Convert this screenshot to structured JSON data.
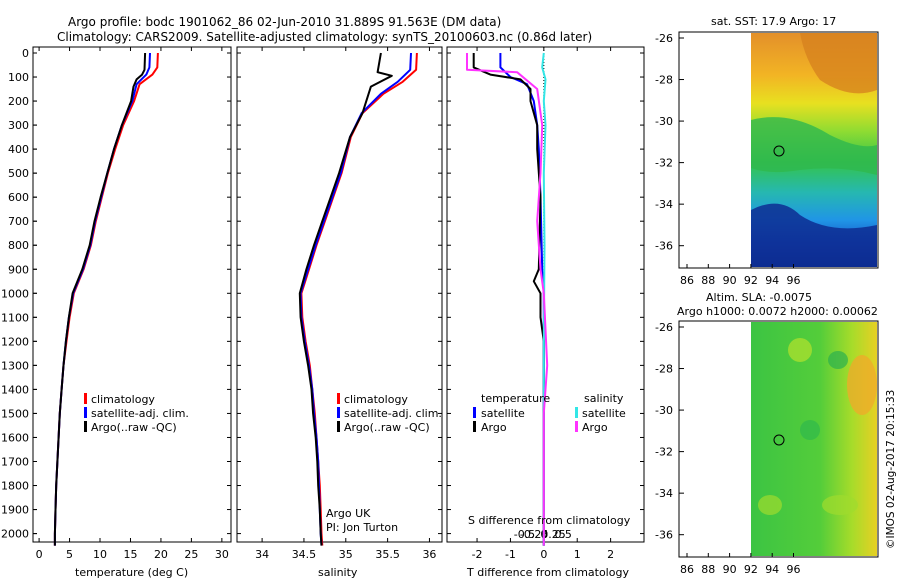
{
  "header": {
    "line1": "Argo profile: bodc 1901062_86 02-Jun-2010 31.889S 91.563E (DM data)",
    "line2": "Climatology: CARS2009. Satellite-adjusted climatology: synTS_20100603.nc (0.86d later)"
  },
  "colors": {
    "climatology": "#ff0000",
    "satellite": "#0000ff",
    "argo": "#000000",
    "sal_satellite": "#33e6e6",
    "sal_argo": "#ff33ff"
  },
  "depth_axis": {
    "ticks": [
      "0",
      "100",
      "200",
      "300",
      "400",
      "500",
      "600",
      "700",
      "800",
      "900",
      "1000",
      "1100",
      "1200",
      "1300",
      "1400",
      "1500",
      "1600",
      "1700",
      "1800",
      "1900",
      "2000"
    ]
  },
  "legend": {
    "climatology": "climatology",
    "satellite_adj": "satellite-adj. clim.",
    "argo": "Argo(..raw -QC)"
  },
  "credit": {
    "line1": "Argo UK",
    "line2": "PI: Jon Turton"
  },
  "diff_legend": {
    "temperature": "temperature",
    "salinity": "salinity",
    "satellite": "satellite",
    "argo": "Argo"
  },
  "maps": {
    "top_title": "sat. SST: 17.9 Argo: 17",
    "bottom_title1": "Altim. SLA: -0.0075",
    "bottom_title2": "Argo h1000: 0.0072 h2000: 0.00062",
    "lat_ticks": [
      "-26",
      "-28",
      "-30",
      "-32",
      "-34",
      "-36"
    ],
    "lon_ticks": [
      "86",
      "88",
      "90",
      "92",
      "94",
      "96"
    ],
    "footer": "©IMOS 02-Aug-2017 20:15:33"
  },
  "chart_data": [
    {
      "type": "line",
      "name": "temperature",
      "xlabel": "temperature (deg C)",
      "xlim": [
        -1,
        31.5
      ],
      "ylim": [
        2060,
        0
      ],
      "xticks": [
        "0",
        "5",
        "10",
        "15",
        "20",
        "25",
        "30"
      ],
      "series": [
        {
          "name": "climatology",
          "color": "#ff0000",
          "points": [
            [
              19.5,
              0
            ],
            [
              19.4,
              60
            ],
            [
              18.6,
              90
            ],
            [
              16.5,
              130
            ],
            [
              15.6,
              200
            ],
            [
              13.8,
              300
            ],
            [
              12.5,
              400
            ],
            [
              11.3,
              500
            ],
            [
              10.3,
              600
            ],
            [
              9.3,
              700
            ],
            [
              8.5,
              800
            ],
            [
              7.3,
              900
            ],
            [
              5.7,
              1000
            ],
            [
              5.0,
              1100
            ],
            [
              4.5,
              1200
            ],
            [
              4.0,
              1300
            ],
            [
              3.7,
              1400
            ],
            [
              3.4,
              1500
            ],
            [
              3.2,
              1600
            ],
            [
              3.0,
              1700
            ],
            [
              2.8,
              1800
            ],
            [
              2.7,
              1900
            ],
            [
              2.6,
              2000
            ],
            [
              2.6,
              2050
            ]
          ]
        },
        {
          "name": "satellite-adj. clim.",
          "color": "#0000ff",
          "points": [
            [
              18.2,
              0
            ],
            [
              18.1,
              60
            ],
            [
              17.6,
              90
            ],
            [
              16.0,
              130
            ],
            [
              15.3,
              200
            ],
            [
              13.6,
              300
            ],
            [
              12.3,
              400
            ],
            [
              11.2,
              500
            ],
            [
              10.2,
              600
            ],
            [
              9.2,
              700
            ],
            [
              8.4,
              800
            ],
            [
              7.2,
              900
            ],
            [
              5.6,
              1000
            ],
            [
              4.9,
              1100
            ],
            [
              4.4,
              1200
            ],
            [
              4.0,
              1300
            ],
            [
              3.7,
              1400
            ],
            [
              3.4,
              1500
            ],
            [
              3.2,
              1600
            ],
            [
              3.0,
              1700
            ],
            [
              2.8,
              1800
            ],
            [
              2.7,
              1900
            ],
            [
              2.6,
              2000
            ],
            [
              2.6,
              2050
            ]
          ]
        },
        {
          "name": "Argo(..raw -QC)",
          "color": "#000000",
          "points": [
            [
              17.4,
              0
            ],
            [
              17.3,
              70
            ],
            [
              16.9,
              90
            ],
            [
              16.0,
              110
            ],
            [
              15.5,
              140
            ],
            [
              15.1,
              200
            ],
            [
              13.6,
              300
            ],
            [
              12.3,
              400
            ],
            [
              11.2,
              500
            ],
            [
              10.1,
              600
            ],
            [
              9.1,
              700
            ],
            [
              8.3,
              800
            ],
            [
              7.1,
              900
            ],
            [
              5.5,
              1000
            ],
            [
              4.9,
              1100
            ],
            [
              4.4,
              1200
            ],
            [
              4.0,
              1300
            ],
            [
              3.7,
              1400
            ],
            [
              3.4,
              1500
            ],
            [
              3.2,
              1600
            ],
            [
              3.0,
              1700
            ],
            [
              2.8,
              1800
            ],
            [
              2.7,
              1900
            ],
            [
              2.6,
              2000
            ],
            [
              2.6,
              2050
            ]
          ]
        }
      ]
    },
    {
      "type": "line",
      "name": "salinity",
      "xlabel": "salinity",
      "xlim": [
        33.7,
        36.15
      ],
      "ylim": [
        2060,
        0
      ],
      "xticks": [
        "34",
        "34.5",
        "35",
        "35.5",
        "36"
      ],
      "series": [
        {
          "name": "climatology",
          "color": "#ff0000",
          "points": [
            [
              35.85,
              0
            ],
            [
              35.84,
              70
            ],
            [
              35.68,
              120
            ],
            [
              35.45,
              170
            ],
            [
              35.2,
              250
            ],
            [
              35.06,
              350
            ],
            [
              34.95,
              500
            ],
            [
              34.85,
              600
            ],
            [
              34.75,
              700
            ],
            [
              34.65,
              800
            ],
            [
              34.56,
              900
            ],
            [
              34.47,
              1000
            ],
            [
              34.48,
              1100
            ],
            [
              34.52,
              1200
            ],
            [
              34.57,
              1300
            ],
            [
              34.6,
              1400
            ],
            [
              34.63,
              1500
            ],
            [
              34.65,
              1600
            ],
            [
              34.67,
              1700
            ],
            [
              34.69,
              1800
            ],
            [
              34.7,
              1900
            ],
            [
              34.71,
              2000
            ],
            [
              34.72,
              2050
            ]
          ]
        },
        {
          "name": "satellite-adj. clim.",
          "color": "#0000ff",
          "points": [
            [
              35.78,
              0
            ],
            [
              35.77,
              70
            ],
            [
              35.62,
              120
            ],
            [
              35.42,
              170
            ],
            [
              35.19,
              250
            ],
            [
              35.05,
              350
            ],
            [
              34.94,
              500
            ],
            [
              34.84,
              600
            ],
            [
              34.74,
              700
            ],
            [
              34.64,
              800
            ],
            [
              34.55,
              900
            ],
            [
              34.46,
              1000
            ],
            [
              34.47,
              1100
            ],
            [
              34.51,
              1200
            ],
            [
              34.56,
              1300
            ],
            [
              34.6,
              1400
            ],
            [
              34.62,
              1500
            ],
            [
              34.65,
              1600
            ],
            [
              34.67,
              1700
            ],
            [
              34.68,
              1800
            ],
            [
              34.69,
              1900
            ],
            [
              34.7,
              2000
            ],
            [
              34.71,
              2050
            ]
          ]
        },
        {
          "name": "Argo(..raw -QC)",
          "color": "#000000",
          "points": [
            [
              35.42,
              0
            ],
            [
              35.38,
              80
            ],
            [
              35.55,
              95
            ],
            [
              35.3,
              140
            ],
            [
              35.2,
              250
            ],
            [
              35.05,
              350
            ],
            [
              34.92,
              500
            ],
            [
              34.82,
              600
            ],
            [
              34.72,
              700
            ],
            [
              34.62,
              800
            ],
            [
              34.53,
              900
            ],
            [
              34.45,
              1000
            ],
            [
              34.46,
              1100
            ],
            [
              34.5,
              1200
            ],
            [
              34.55,
              1300
            ],
            [
              34.59,
              1400
            ],
            [
              34.61,
              1500
            ],
            [
              34.64,
              1600
            ],
            [
              34.66,
              1700
            ],
            [
              34.67,
              1800
            ],
            [
              34.69,
              1900
            ],
            [
              34.7,
              2000
            ],
            [
              34.71,
              2050
            ]
          ]
        }
      ]
    },
    {
      "type": "line",
      "name": "difference from climatology",
      "title": "S difference from climatology",
      "xlabel": "T difference from climatology",
      "xlim": [
        -2.9,
        3.0
      ],
      "ylim": [
        2060,
        0
      ],
      "xticks": [
        "-2",
        "-1",
        "0",
        "1",
        "2"
      ],
      "top_ticks": [
        "-0.5",
        "-0.25",
        "0",
        "0.25",
        "0.5"
      ],
      "series": [
        {
          "name": "temperature satellite",
          "color": "#0000ff",
          "points": [
            [
              -1.3,
              0
            ],
            [
              -1.3,
              60
            ],
            [
              -1.0,
              100
            ],
            [
              -0.5,
              130
            ],
            [
              -0.3,
              200
            ],
            [
              -0.2,
              300
            ],
            [
              -0.15,
              400
            ],
            [
              -0.1,
              600
            ],
            [
              -0.05,
              900
            ],
            [
              0,
              1000
            ],
            [
              0,
              2050
            ]
          ]
        },
        {
          "name": "temperature Argo",
          "color": "#000000",
          "points": [
            [
              -2.1,
              0
            ],
            [
              -2.1,
              60
            ],
            [
              -1.6,
              90
            ],
            [
              -0.7,
              110
            ],
            [
              -0.4,
              150
            ],
            [
              -0.4,
              200
            ],
            [
              -0.2,
              300
            ],
            [
              -0.2,
              400
            ],
            [
              -0.1,
              600
            ],
            [
              -0.15,
              900
            ],
            [
              -0.3,
              950
            ],
            [
              -0.1,
              1000
            ],
            [
              -0.1,
              1100
            ],
            [
              0,
              1200
            ],
            [
              0,
              2050
            ]
          ]
        },
        {
          "name": "salinity satellite",
          "color": "#33e6e6",
          "points": [
            [
              0,
              0
            ],
            [
              -0.05,
              60
            ],
            [
              0.05,
              110
            ],
            [
              0.0,
              200
            ],
            [
              0.05,
              300
            ],
            [
              0.0,
              500
            ],
            [
              0.02,
              800
            ],
            [
              0.0,
              1200
            ],
            [
              0.0,
              2050
            ]
          ]
        },
        {
          "name": "salinity Argo",
          "color": "#ff33ff",
          "points": [
            [
              -2.3,
              0
            ],
            [
              -2.3,
              70
            ],
            [
              -0.8,
              80
            ],
            [
              -0.2,
              150
            ],
            [
              -0.05,
              300
            ],
            [
              -0.1,
              500
            ],
            [
              -0.2,
              700
            ],
            [
              -0.1,
              900
            ],
            [
              0,
              1000
            ],
            [
              0.1,
              1300
            ],
            [
              0,
              1500
            ],
            [
              0,
              2050
            ]
          ]
        }
      ]
    }
  ]
}
